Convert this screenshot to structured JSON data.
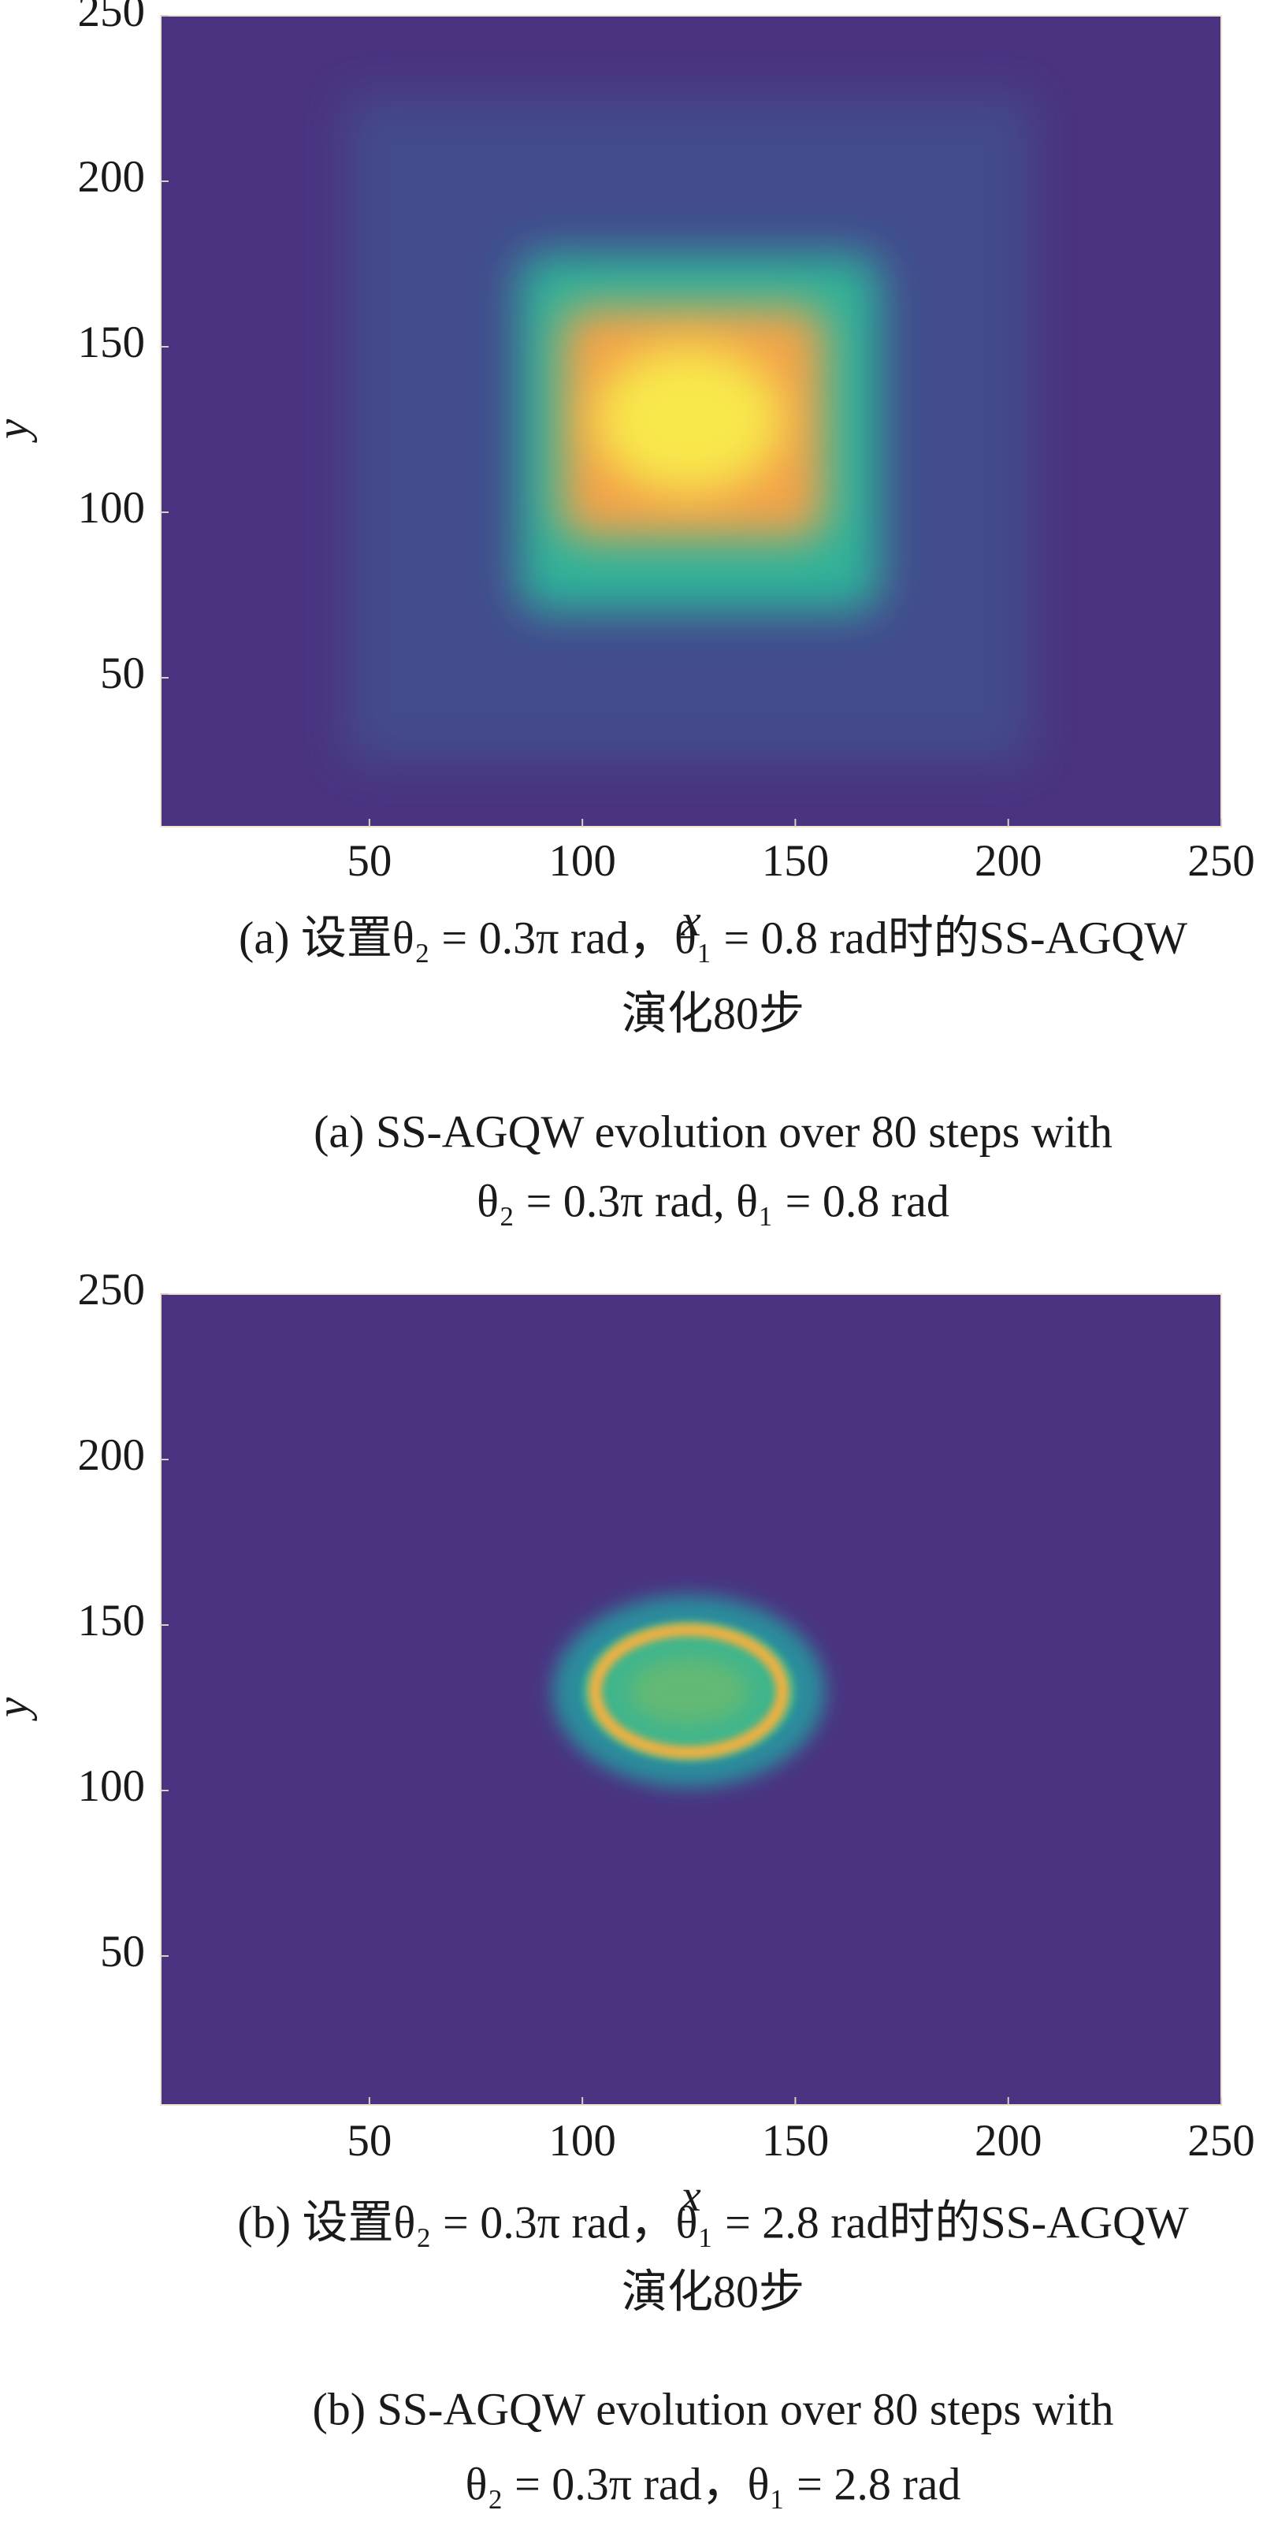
{
  "chart_data": [
    {
      "type": "heatmap",
      "xlabel": "x",
      "ylabel": "y",
      "xlim": [
        1,
        250
      ],
      "ylim": [
        5,
        250
      ],
      "xticks": [
        50,
        100,
        150,
        200,
        250
      ],
      "yticks": [
        50,
        100,
        150,
        200,
        250
      ],
      "caption_cn": [
        "(a) 设置θ₂ = 0.3π rad，θ₁ = 0.8 rad时的SS-AGQW",
        "演化80步"
      ],
      "caption_en": [
        "(a) SS-AGQW evolution over 80 steps with",
        "θ₂ = 0.3π rad, θ₁ = 0.8 rad"
      ]
    },
    {
      "type": "heatmap",
      "xlabel": "x",
      "ylabel": "y",
      "xlim": [
        1,
        250
      ],
      "ylim": [
        5,
        250
      ],
      "xticks": [
        50,
        100,
        150,
        200,
        250
      ],
      "yticks": [
        50,
        100,
        150,
        200,
        250
      ],
      "caption_cn": [
        "(b) 设置θ₂ = 0.3π rad，θ₁ = 2.8 rad时的SS-AGQW",
        "演化80步"
      ],
      "caption_en": [
        "(b) SS-AGQW evolution over 80 steps with",
        "θ₂ = 0.3π rad，θ₁ = 2.8 rad"
      ]
    }
  ]
}
